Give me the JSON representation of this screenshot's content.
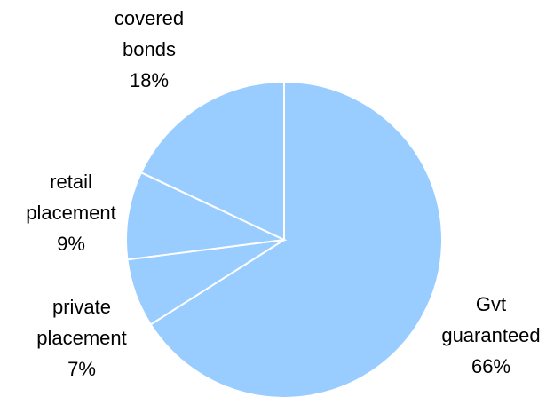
{
  "chart_data": {
    "type": "pie",
    "title": "",
    "start": "12 o'clock",
    "direction": "clockwise",
    "slices": [
      {
        "label_lines": [
          "Gvt",
          "guaranteed"
        ],
        "percent_label": "66%",
        "value": 66,
        "color": "#99CCFF"
      },
      {
        "label_lines": [
          "private",
          "placement"
        ],
        "percent_label": "7%",
        "value": 7,
        "color": "#99CCFF"
      },
      {
        "label_lines": [
          "retail",
          "placement"
        ],
        "percent_label": "9%",
        "value": 9,
        "color": "#99CCFF"
      },
      {
        "label_lines": [
          "covered",
          "bonds"
        ],
        "percent_label": "18%",
        "value": 18,
        "color": "#99CCFF"
      }
    ],
    "legend": "none"
  }
}
